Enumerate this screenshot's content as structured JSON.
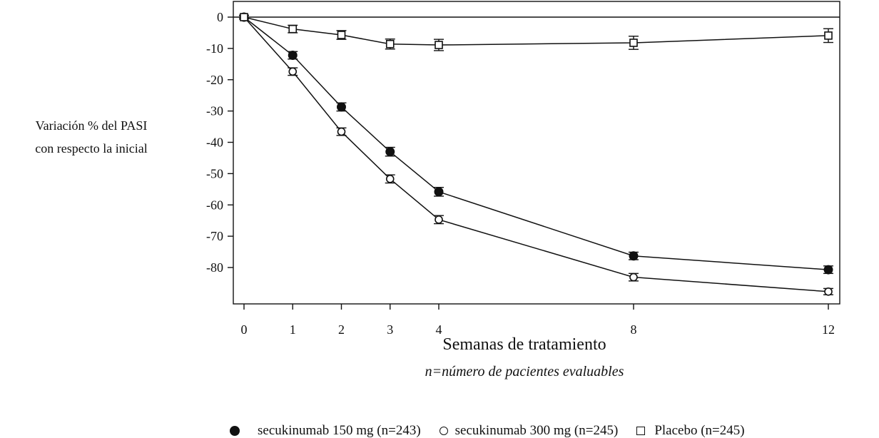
{
  "chart_data": {
    "type": "line",
    "title": "",
    "ylabel_lines": [
      "Variación % del PASI",
      "con respecto la inicial"
    ],
    "xlabel": "Semanas de tratamiento",
    "note": "n=número de pacientes evaluables",
    "x_ticks": [
      "0",
      "1",
      "2",
      "3",
      "4",
      "8",
      "12"
    ],
    "y_ticks": [
      0,
      -10,
      -20,
      -30,
      -40,
      -50,
      -60,
      -70,
      -80
    ],
    "xlim": [
      0,
      12
    ],
    "ylim": [
      -90,
      0
    ],
    "grid": false,
    "legend_position": "bottom",
    "series": [
      {
        "name": "secukinumab 150 mg (n=243)",
        "marker": "filled-circle",
        "x": [
          0,
          1,
          2,
          3,
          4,
          8,
          12
        ],
        "y": [
          0,
          -12.2,
          -28.7,
          -43.0,
          -55.8,
          -76.3,
          -80.7
        ],
        "error": [
          0.6,
          1.2,
          1.3,
          1.4,
          1.4,
          1.2,
          1.2
        ]
      },
      {
        "name": "secukinumab 300 mg (n=245)",
        "marker": "open-circle",
        "x": [
          0,
          1,
          2,
          3,
          4,
          8,
          12
        ],
        "y": [
          0,
          -17.4,
          -36.6,
          -51.7,
          -64.7,
          -83.1,
          -87.7
        ],
        "error": [
          0.6,
          1.2,
          1.2,
          1.3,
          1.3,
          1.2,
          1.0
        ]
      },
      {
        "name": "Placebo (n=245)",
        "marker": "open-square",
        "x": [
          0,
          1,
          2,
          3,
          4,
          8,
          12
        ],
        "y": [
          0,
          -3.8,
          -5.7,
          -8.6,
          -8.9,
          -8.2,
          -5.9
        ],
        "error": [
          0.6,
          1.2,
          1.4,
          1.6,
          1.8,
          2.1,
          2.2
        ]
      }
    ]
  }
}
